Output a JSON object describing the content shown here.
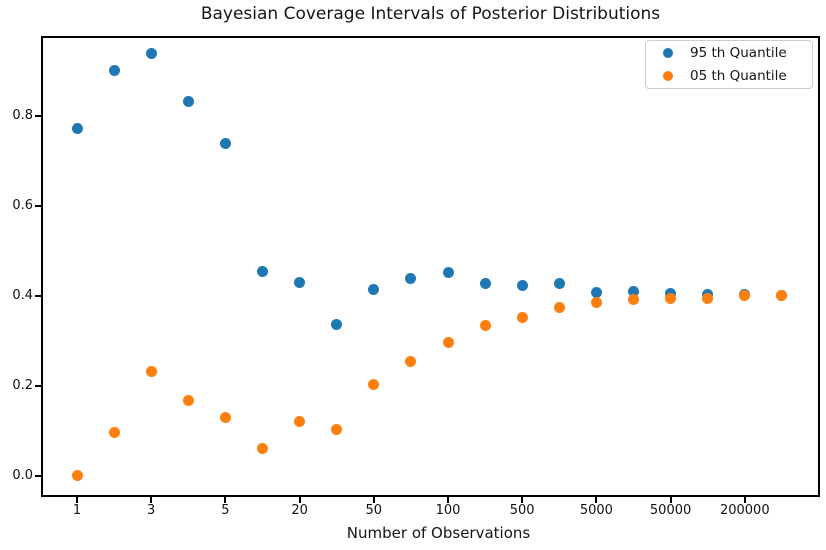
{
  "chart_data": {
    "type": "scatter",
    "title": "Bayesian Coverage Intervals of Posterior Distributions",
    "xlabel": "Number of Observations",
    "ylabel": "",
    "grid": false,
    "legend_position": "upper right",
    "x_scale": "log-like, points evenly spaced by index",
    "x": [
      1,
      2,
      3,
      4,
      5,
      10,
      20,
      30,
      50,
      70,
      100,
      200,
      500,
      1000,
      5000,
      10000,
      50000,
      100000,
      200000,
      500000
    ],
    "x_tick_point_indices": [
      0,
      2,
      4,
      6,
      8,
      10,
      12,
      14,
      16,
      18
    ],
    "x_tick_labels": [
      "1",
      "3",
      "5",
      "20",
      "50",
      "100",
      "500",
      "5000",
      "50000",
      "200000"
    ],
    "y_ticks": [
      0.0,
      0.2,
      0.4,
      0.6,
      0.8
    ],
    "y_tick_labels": [
      "0.0",
      "0.2",
      "0.4",
      "0.6",
      "0.8"
    ],
    "ylim": [
      -0.045,
      0.978
    ],
    "series": [
      {
        "name": "95 th Quantile",
        "color": "#1f77b4",
        "marker": "circle",
        "values": [
          0.772,
          0.9,
          0.938,
          0.832,
          0.738,
          0.453,
          0.429,
          0.336,
          0.413,
          0.438,
          0.451,
          0.427,
          0.422,
          0.427,
          0.407,
          0.409,
          0.404,
          0.402,
          0.402,
          0.4
        ]
      },
      {
        "name": "05 th Quantile",
        "color": "#ff7f0e",
        "marker": "circle",
        "values": [
          0.002,
          0.096,
          0.233,
          0.167,
          0.129,
          0.062,
          0.122,
          0.104,
          0.204,
          0.253,
          0.296,
          0.333,
          0.351,
          0.373,
          0.384,
          0.391,
          0.393,
          0.393,
          0.401,
          0.4
        ]
      }
    ]
  }
}
